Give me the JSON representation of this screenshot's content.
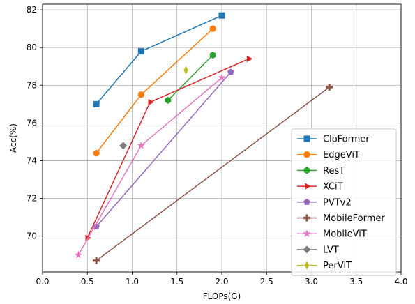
{
  "chart_data": {
    "type": "line",
    "title": "",
    "xlabel": "FLOPs(G)",
    "ylabel": "Acc(%)",
    "xlim": [
      0.0,
      4.0
    ],
    "ylim": [
      68.1,
      82.3
    ],
    "xticks": [
      "0.0",
      "0.5",
      "1.0",
      "1.5",
      "2.0",
      "2.5",
      "3.0",
      "3.5",
      "4.0"
    ],
    "yticks": [
      "70",
      "72",
      "74",
      "76",
      "78",
      "80",
      "82"
    ],
    "grid": true,
    "legend_position": "lower-right",
    "series": [
      {
        "name": "CloFormer",
        "color": "#1f77b4",
        "marker": "square",
        "points": [
          [
            0.6,
            77.0
          ],
          [
            1.1,
            79.8
          ],
          [
            2.0,
            81.7
          ]
        ]
      },
      {
        "name": "EdgeViT",
        "color": "#ff7f0e",
        "marker": "circle",
        "points": [
          [
            0.6,
            74.4
          ],
          [
            1.1,
            77.5
          ],
          [
            1.9,
            81.0
          ]
        ]
      },
      {
        "name": "ResT",
        "color": "#2ca02c",
        "marker": "hexagon",
        "points": [
          [
            1.4,
            77.2
          ],
          [
            1.9,
            79.6
          ]
        ]
      },
      {
        "name": "XCiT",
        "color": "#d62728",
        "marker": "triangle-right",
        "points": [
          [
            0.5,
            69.9
          ],
          [
            1.2,
            77.1
          ],
          [
            2.3,
            79.4
          ]
        ]
      },
      {
        "name": "PVTv2",
        "color": "#9467bd",
        "marker": "pentagon",
        "points": [
          [
            0.6,
            70.5
          ],
          [
            2.1,
            78.7
          ]
        ]
      },
      {
        "name": "MobileFormer",
        "color": "#8c564b",
        "marker": "plus",
        "points": [
          [
            0.6,
            68.7
          ],
          [
            3.2,
            77.9
          ]
        ]
      },
      {
        "name": "MobileViT",
        "color": "#e377c2",
        "marker": "star",
        "points": [
          [
            0.4,
            69.0
          ],
          [
            1.1,
            74.8
          ],
          [
            2.0,
            78.4
          ]
        ]
      },
      {
        "name": "LVT",
        "color": "#7f7f7f",
        "marker": "diamond",
        "points": [
          [
            0.9,
            74.8
          ]
        ]
      },
      {
        "name": "PerViT",
        "color": "#bcbd22",
        "marker": "thin-diamond",
        "points": [
          [
            1.6,
            78.8
          ]
        ]
      }
    ]
  }
}
